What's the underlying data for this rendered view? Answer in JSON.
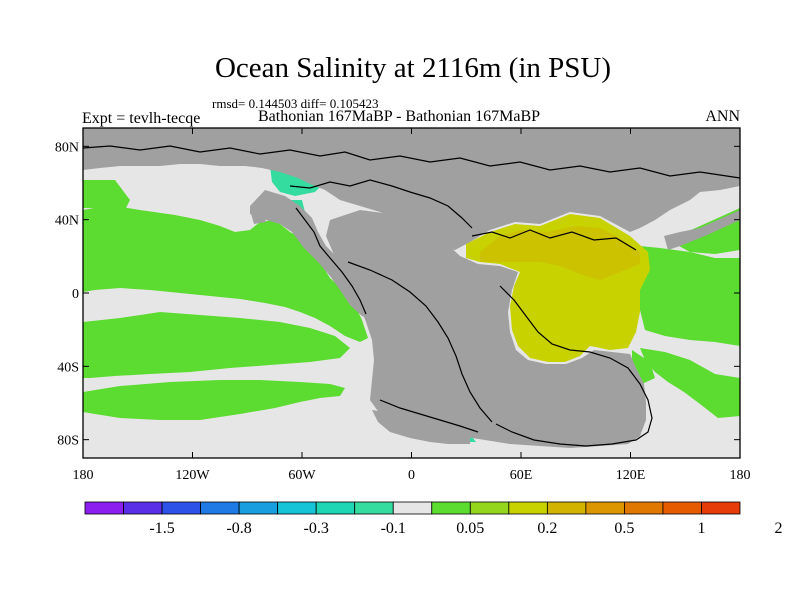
{
  "header": {
    "title": "Ocean Salinity at 2116m (in PSU)",
    "stats": "rmsd= 0.144503 diff= 0.105423",
    "subtitle": "Bathonian 167MaBP - Bathonian 167MaBP",
    "experiment": "Expt = tevlh-tecqe",
    "season": "ANN"
  },
  "axes": {
    "lat_labels": [
      "80N",
      "40N",
      "0",
      "40S",
      "80S"
    ],
    "lon_labels": [
      "180",
      "120W",
      "60W",
      "0",
      "60E",
      "120E",
      "180"
    ]
  },
  "colorbar": {
    "colors": [
      "#8c1ef0",
      "#5a2ee6",
      "#2d52e8",
      "#1f7ae6",
      "#199fe0",
      "#16c4d8",
      "#1ed6b4",
      "#34dca0",
      "#e6e6e6",
      "#5cdc30",
      "#94d61e",
      "#c8d200",
      "#d2b400",
      "#dc9600",
      "#e07800",
      "#e65a00",
      "#e63c0a"
    ],
    "tick_labels": [
      "-1.5",
      "-0.8",
      "-0.3",
      "-0.1",
      "0.05",
      "0.2",
      "0.5",
      "1",
      "2"
    ]
  },
  "legend_colors": {
    "land": "#a0a0a0",
    "no_change": "#e6e6e6",
    "small_positive": "#5cdc30",
    "moderate_positive": "#c8d200",
    "high_positive": "#d2b400",
    "negative": "#34dca0"
  },
  "chart_data": {
    "type": "heatmap",
    "title": "Ocean Salinity at 2116m (in PSU)",
    "variable": "salinity difference",
    "units": "PSU",
    "xlim": [
      -180,
      180
    ],
    "ylim": [
      -90,
      90
    ],
    "xticks": [
      -180,
      -120,
      -60,
      0,
      60,
      120,
      180
    ],
    "yticks": [
      80,
      40,
      0,
      -40,
      -80
    ],
    "levels": [
      -1.5,
      -0.8,
      -0.3,
      -0.1,
      0.05,
      0.2,
      0.5,
      1,
      2
    ]
  }
}
